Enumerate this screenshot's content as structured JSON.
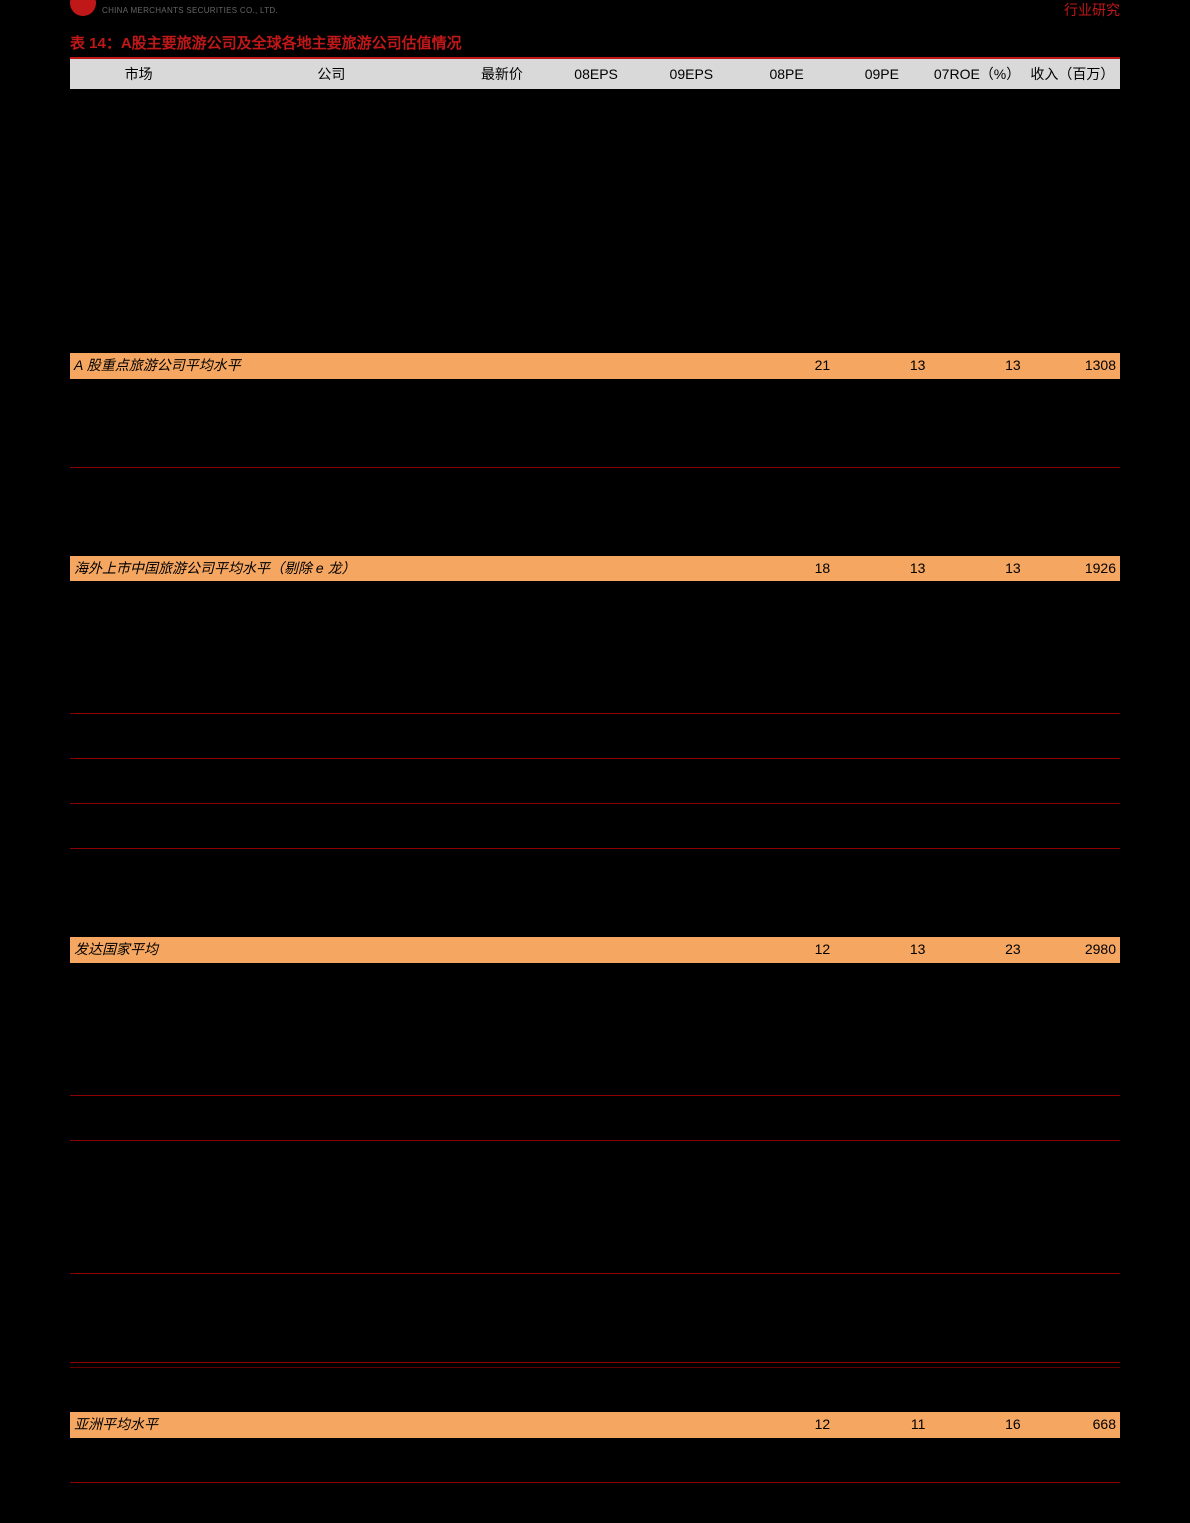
{
  "header": {
    "logo_text": "CHINA MERCHANTS SECURITIES CO., LTD.",
    "right_text": "行业研究"
  },
  "table": {
    "title": "表 14：A股主要旅游公司及全球各地主要旅游公司估值情况",
    "columns": [
      "市场",
      "公司",
      "最新价",
      "08EPS",
      "09EPS",
      "08PE",
      "09PE",
      "07ROE（%）",
      "收入（百万）"
    ],
    "summary_rows": [
      {
        "label": "A 股重点旅游公司平均水平",
        "pe08": "21",
        "pe09": "13",
        "roe": "13",
        "rev": "1308"
      },
      {
        "label": "海外上市中国旅游公司平均水平（剔除 e 龙）",
        "pe08": "18",
        "pe09": "13",
        "roe": "13",
        "rev": "1926"
      },
      {
        "label": "发达国家平均",
        "pe08": "12",
        "pe09": "13",
        "roe": "23",
        "rev": "2980"
      },
      {
        "label": "亚洲平均水平",
        "pe08": "12",
        "pe09": "11",
        "roe": "16",
        "rev": "668"
      }
    ]
  },
  "colors": {
    "background": "#000000",
    "accent": "#c01818",
    "highlight_bg": "#f5a661",
    "header_bg": "#d9d9d9",
    "separator": "#8b0000"
  }
}
